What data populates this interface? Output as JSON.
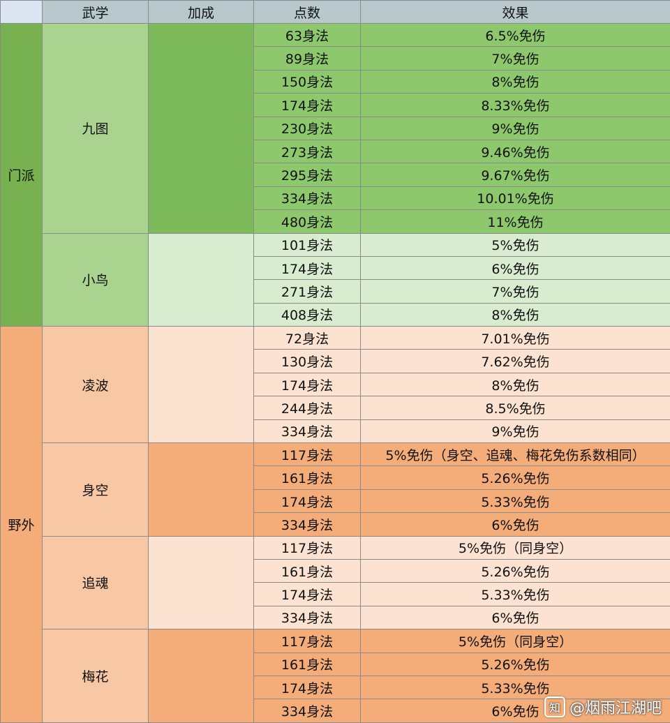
{
  "table": {
    "headers": [
      "武学",
      "加成",
      "点数",
      "效果"
    ],
    "sections": [
      {
        "name": "门派",
        "skills": [
          {
            "name": "九图",
            "rows": [
              [
                "63身法",
                "6.5%免伤"
              ],
              [
                "89身法",
                "7%免伤"
              ],
              [
                "150身法",
                "8%免伤"
              ],
              [
                "174身法",
                "8.33%免伤"
              ],
              [
                "230身法",
                "9%免伤"
              ],
              [
                "273身法",
                "9.46%免伤"
              ],
              [
                "295身法",
                "9.67%免伤"
              ],
              [
                "334身法",
                "10.01%免伤"
              ],
              [
                "480身法",
                "11%免伤"
              ]
            ]
          },
          {
            "name": "小鸟",
            "rows": [
              [
                "101身法",
                "5%免伤"
              ],
              [
                "174身法",
                "6%免伤"
              ],
              [
                "271身法",
                "7%免伤"
              ],
              [
                "408身法",
                "8%免伤"
              ]
            ]
          }
        ]
      },
      {
        "name": "野外",
        "skills": [
          {
            "name": "凌波",
            "rows": [
              [
                "72身法",
                "7.01%免伤"
              ],
              [
                "130身法",
                "7.62%免伤"
              ],
              [
                "174身法",
                "8%免伤"
              ],
              [
                "244身法",
                "8.5%免伤"
              ],
              [
                "334身法",
                "9%免伤"
              ]
            ]
          },
          {
            "name": "身空",
            "rows": [
              [
                "117身法",
                "5%免伤（身空、追魂、梅花免伤系数相同）"
              ],
              [
                "161身法",
                "5.26%免伤"
              ],
              [
                "174身法",
                "5.33%免伤"
              ],
              [
                "334身法",
                "6%免伤"
              ]
            ]
          },
          {
            "name": "追魂",
            "rows": [
              [
                "117身法",
                "5%免伤（同身空）"
              ],
              [
                "161身法",
                "5.26%免伤"
              ],
              [
                "174身法",
                "5.33%免伤"
              ],
              [
                "334身法",
                "6%免伤"
              ]
            ]
          },
          {
            "name": "梅花",
            "rows": [
              [
                "117身法",
                "5%免伤（同身空）"
              ],
              [
                "161身法",
                "5.26%免伤"
              ],
              [
                "174身法",
                "5.33%免伤"
              ],
              [
                "334身法",
                "6%免伤"
              ]
            ]
          }
        ]
      }
    ]
  },
  "watermark": {
    "icon": "知",
    "text": "@烟雨江湖吧"
  }
}
